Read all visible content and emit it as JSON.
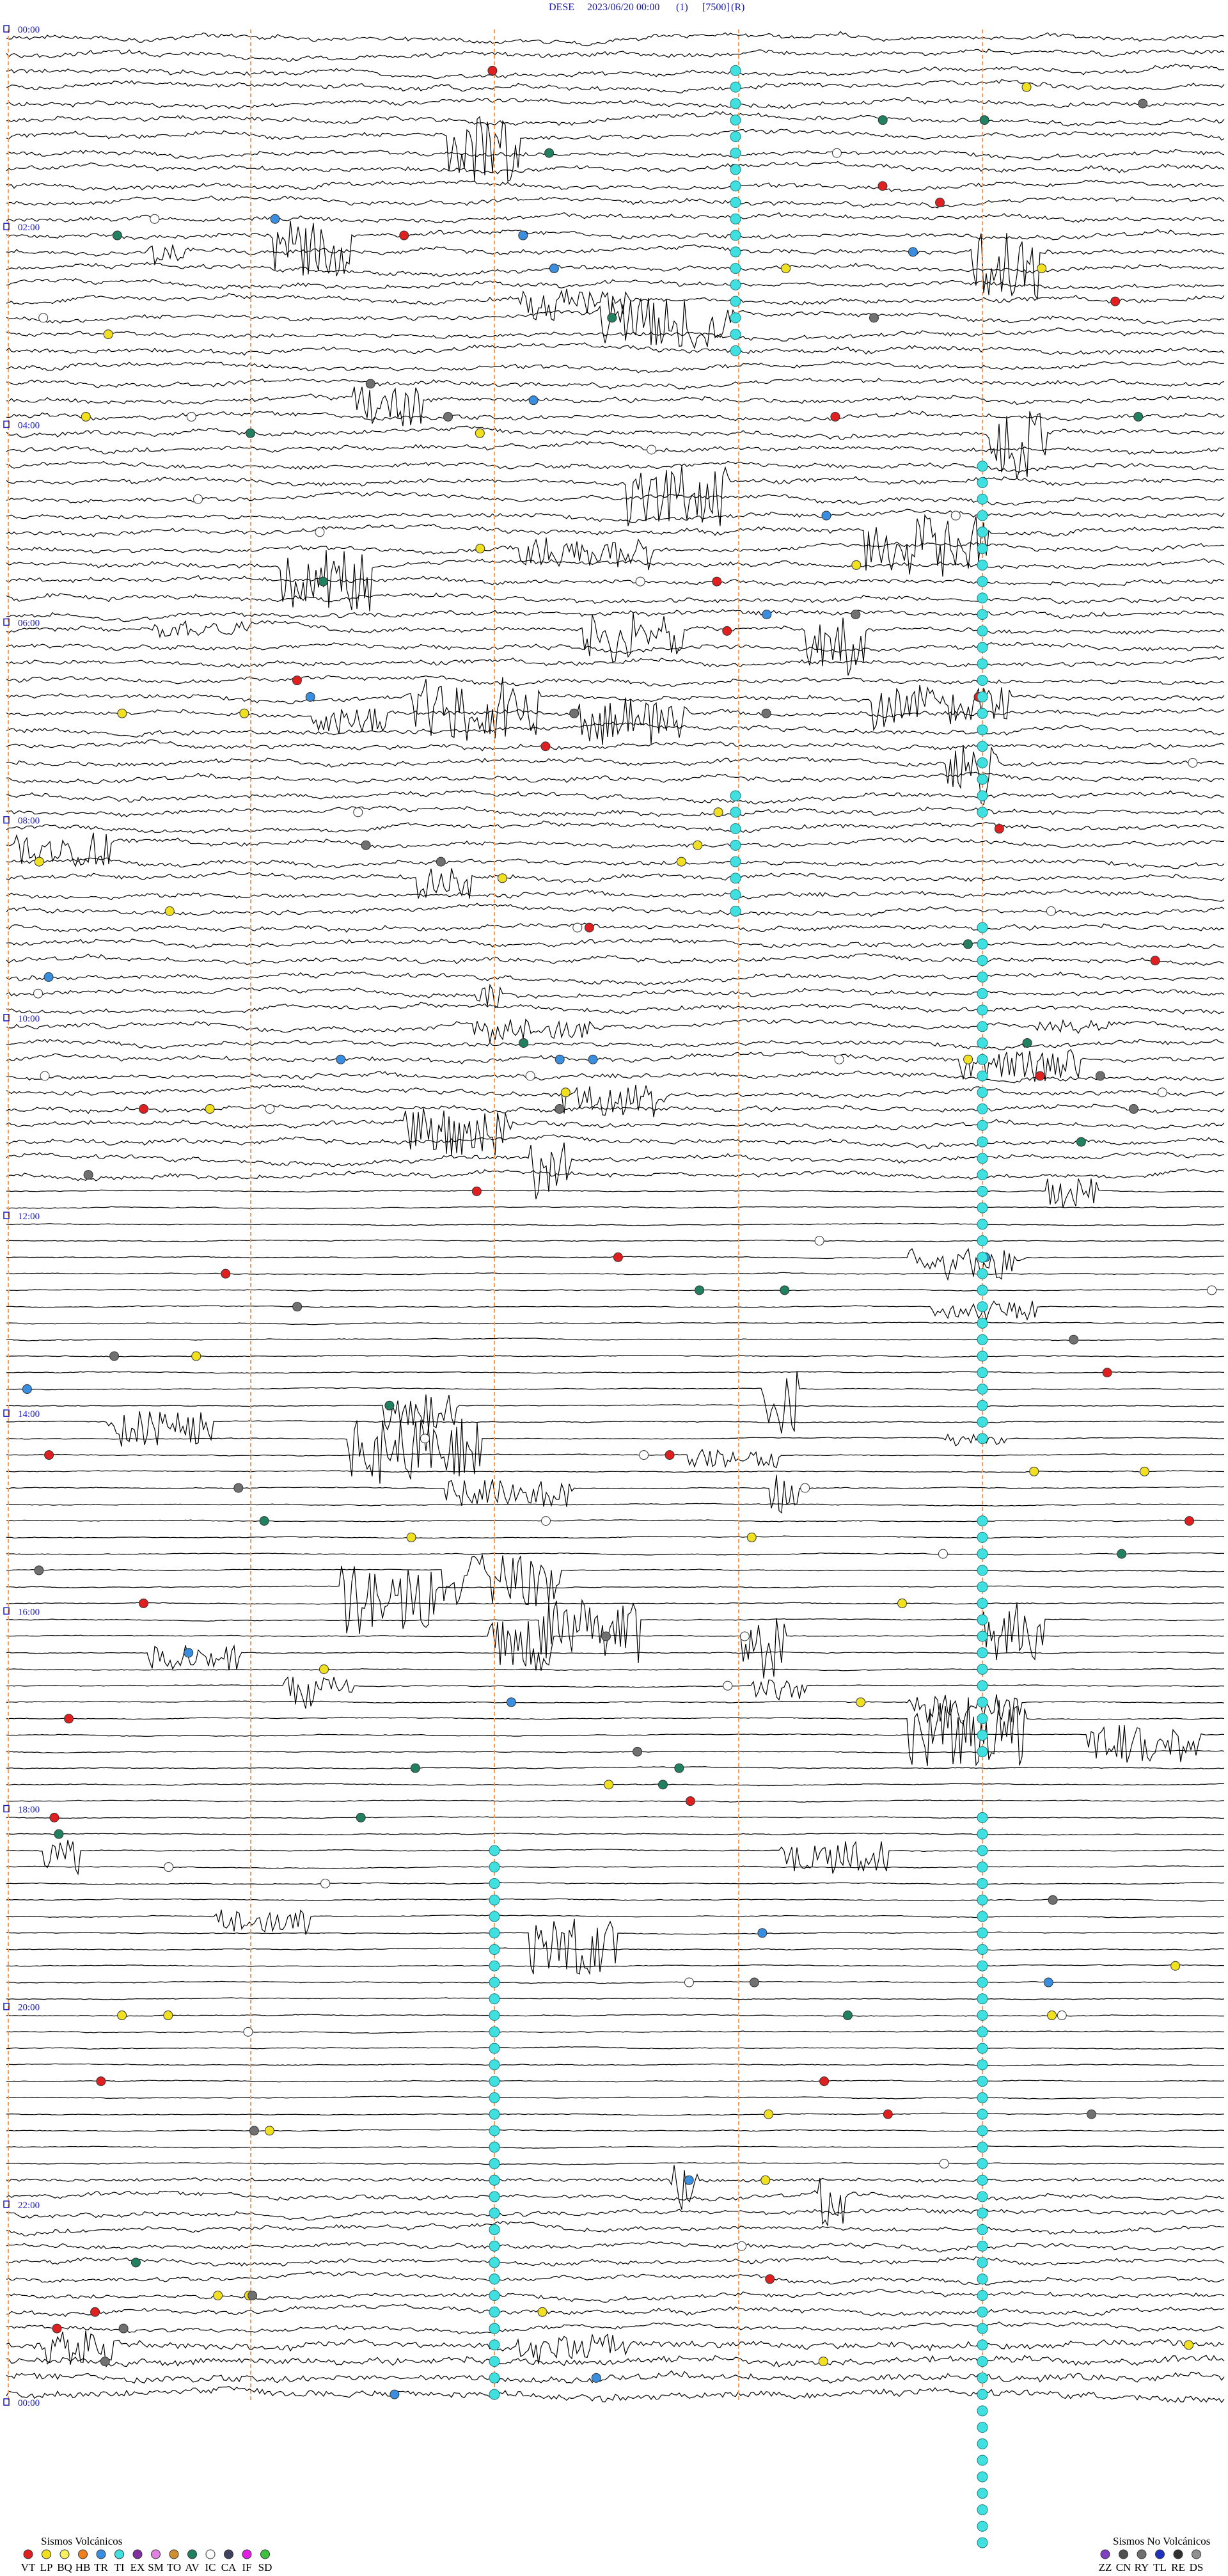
{
  "header": {
    "station": "DESE",
    "datetime": "2023/06/20 00:00",
    "channel": "(1)",
    "scale": "[7500]",
    "mode": "(R)"
  },
  "time_labels": [
    "00:00",
    "02:00",
    "04:00",
    "06:00",
    "08:00",
    "10:00",
    "12:00",
    "14:00",
    "16:00",
    "18:00",
    "20:00",
    "22:00",
    "00:00"
  ],
  "legend": {
    "volcanic": {
      "title": "Sismos Volcánicos",
      "items": [
        {
          "code": "VT",
          "color": "#e02020"
        },
        {
          "code": "LP",
          "color": "#f0e020"
        },
        {
          "code": "BQ",
          "color": "#f8f060"
        },
        {
          "code": "HB",
          "color": "#f08020"
        },
        {
          "code": "TR",
          "color": "#3a8ee0"
        },
        {
          "code": "TI",
          "color": "#40e0e0"
        },
        {
          "code": "EX",
          "color": "#8030a0"
        },
        {
          "code": "SM",
          "color": "#e080e0"
        },
        {
          "code": "TO",
          "color": "#d09030"
        },
        {
          "code": "AV",
          "color": "#208060"
        },
        {
          "code": "IC",
          "color": "#ffffff"
        },
        {
          "code": "CA",
          "color": "#404060"
        },
        {
          "code": "IF",
          "color": "#e020e0"
        },
        {
          "code": "SD",
          "color": "#40c040"
        }
      ]
    },
    "non_volcanic": {
      "title": "Sismos No Volcánicos",
      "items": [
        {
          "code": "ZZ",
          "color": "#8040c0"
        },
        {
          "code": "CN",
          "color": "#505050"
        },
        {
          "code": "RY",
          "color": "#707070"
        },
        {
          "code": "TL",
          "color": "#2030c0"
        },
        {
          "code": "RE",
          "color": "#303030"
        },
        {
          "code": "DS",
          "color": "#909090"
        }
      ]
    }
  }
}
